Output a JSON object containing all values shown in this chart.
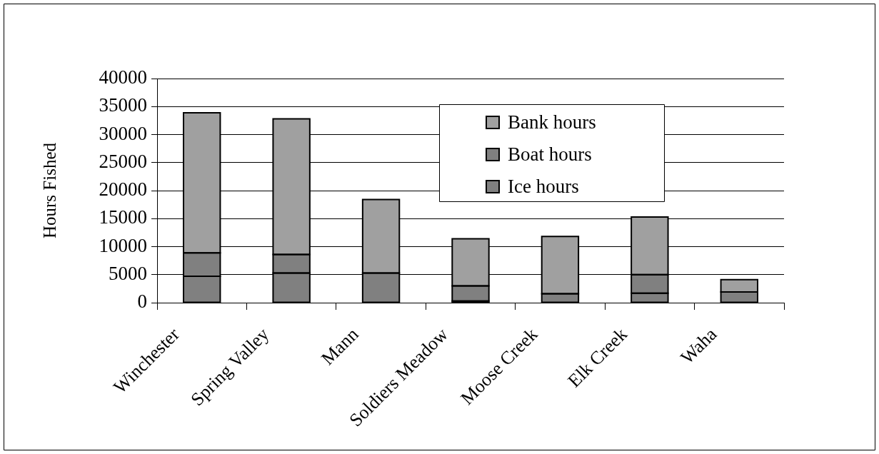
{
  "chart_data": {
    "type": "bar",
    "ylabel": "Hours Fished",
    "categories": [
      "Winchester",
      "Spring Valley",
      "Mann",
      "Soldiers Meadow",
      "Moose Creek",
      "Elk Creek",
      "Waha"
    ],
    "series": [
      {
        "name": "Ice hours",
        "color": "#808080",
        "values": [
          4700,
          5300,
          0,
          300,
          0,
          1700,
          0
        ]
      },
      {
        "name": "Boat hours",
        "color": "#808080",
        "values": [
          4200,
          3300,
          5300,
          2700,
          1600,
          3300,
          1900
        ]
      },
      {
        "name": "Bank hours",
        "color": "#a0a0a0",
        "values": [
          25000,
          24200,
          13100,
          8400,
          10200,
          10300,
          2200
        ]
      }
    ],
    "stacked": true,
    "ylim": [
      0,
      40000
    ],
    "yticks": [
      0,
      5000,
      10000,
      15000,
      20000,
      25000,
      30000,
      35000,
      40000
    ],
    "grid": "y",
    "legend": "top right"
  }
}
